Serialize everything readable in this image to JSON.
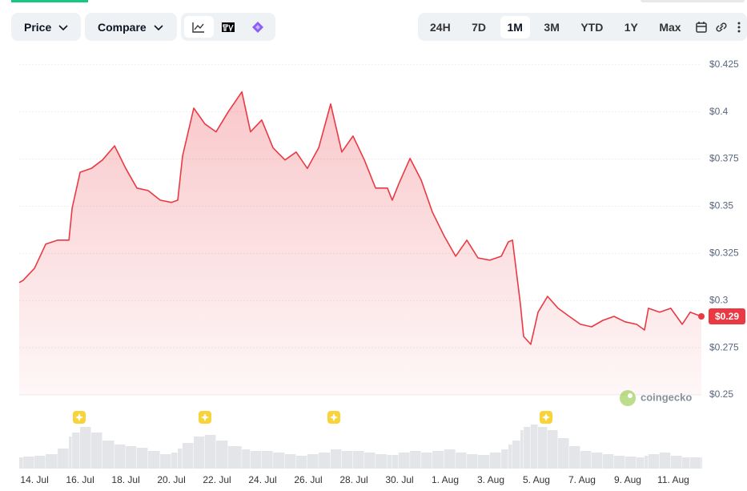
{
  "toolbar": {
    "price": "Price",
    "compare": "Compare",
    "ranges": [
      "24H",
      "7D",
      "1M",
      "3M",
      "YTD",
      "1Y",
      "Max"
    ],
    "active_range": 2
  },
  "watermark": "coingecko",
  "chart_data": {
    "type": "line",
    "current_label": "$0.29",
    "color": "#ea3943",
    "x": [
      -0.67,
      -0.49,
      0,
      0.49,
      1.02,
      1.51,
      1.65,
      2.0,
      2.49,
      2.98,
      3.51,
      4.0,
      4.49,
      4.98,
      5.51,
      6.0,
      6.28,
      6.49,
      6.98,
      7.47,
      7.96,
      8.49,
      9.09,
      9.47,
      9.96,
      10.46,
      10.98,
      11.47,
      11.96,
      12.46,
      12.98,
      13.47,
      13.96,
      14.46,
      14.95,
      15.47,
      15.68,
      15.96,
      16.46,
      16.95,
      17.44,
      17.96,
      18.46,
      18.95,
      19.44,
      19.96,
      20.46,
      20.77,
      20.95,
      21.3,
      21.44,
      21.75,
      22.07,
      22.49,
      22.95,
      23.44,
      23.93,
      24.42,
      24.91,
      25.4,
      25.89,
      26.39,
      26.74,
      26.91,
      27.4,
      27.89,
      28.39,
      28.74,
      29.23
    ],
    "series": [
      {
        "values": [
          0.3095,
          0.3108,
          0.3171,
          0.3299,
          0.332,
          0.332,
          0.349,
          0.368,
          0.37,
          0.3745,
          0.382,
          0.37,
          0.3596,
          0.3583,
          0.3532,
          0.352,
          0.3532,
          0.3766,
          0.402,
          0.3936,
          0.3894,
          0.4,
          0.4106,
          0.3894,
          0.3957,
          0.3809,
          0.3745,
          0.3787,
          0.37,
          0.381,
          0.4042,
          0.3787,
          0.3872,
          0.3745,
          0.3596,
          0.3596,
          0.3532,
          0.3617,
          0.3753,
          0.3638,
          0.3469,
          0.3341,
          0.3235,
          0.332,
          0.3226,
          0.3214,
          0.3235,
          0.3311,
          0.332,
          0.298,
          0.281,
          0.2768,
          0.2938,
          0.3022,
          0.2959,
          0.2916,
          0.2874,
          0.2861,
          0.2895,
          0.2916,
          0.2887,
          0.2874,
          0.2844,
          0.2959,
          0.2938,
          0.2959,
          0.2874,
          0.2938,
          0.2916
        ]
      }
    ],
    "volume": {
      "color": "#e3e5e8",
      "vlim": [
        0,
        60
      ],
      "values": [
        14,
        15,
        16,
        18,
        25,
        40,
        45,
        52,
        45,
        35,
        30,
        28,
        26,
        22,
        18,
        20,
        25,
        32,
        40,
        42,
        35,
        28,
        24,
        22,
        22,
        20,
        18,
        16,
        18,
        20,
        24,
        22,
        22,
        20,
        18,
        17,
        17,
        20,
        22,
        20,
        22,
        24,
        20,
        18,
        17,
        20,
        24,
        30,
        35,
        48,
        52,
        55,
        52,
        48,
        38,
        28,
        22,
        20,
        18,
        16,
        15,
        14,
        16,
        18,
        20,
        16,
        14,
        14,
        14
      ]
    },
    "xlim": [
      -0.67,
      29.23
    ],
    "xticks": [
      {
        "value": 0,
        "label": "14. Jul"
      },
      {
        "value": 2,
        "label": "16. Jul"
      },
      {
        "value": 4,
        "label": "18. Jul"
      },
      {
        "value": 6,
        "label": "20. Jul"
      },
      {
        "value": 8,
        "label": "22. Jul"
      },
      {
        "value": 10,
        "label": "24. Jul"
      },
      {
        "value": 12,
        "label": "26. Jul"
      },
      {
        "value": 14,
        "label": "28. Jul"
      },
      {
        "value": 16,
        "label": "30. Jul"
      },
      {
        "value": 18,
        "label": "1. Aug"
      },
      {
        "value": 20,
        "label": "3. Aug"
      },
      {
        "value": 22,
        "label": "5. Aug"
      },
      {
        "value": 24,
        "label": "7. Aug"
      },
      {
        "value": 26,
        "label": "9. Aug"
      },
      {
        "value": 28,
        "label": "11. Aug"
      }
    ],
    "ylim": [
      0.25,
      0.43
    ],
    "yticks": [
      {
        "value": 0.25,
        "label": "$0.25"
      },
      {
        "value": 0.275,
        "label": "$0.275"
      },
      {
        "value": 0.3,
        "label": "$0.3"
      },
      {
        "value": 0.325,
        "label": "$0.325"
      },
      {
        "value": 0.35,
        "label": "$0.35"
      },
      {
        "value": 0.375,
        "label": "$0.375"
      },
      {
        "value": 0.4,
        "label": "$0.4"
      },
      {
        "value": 0.425,
        "label": "$0.425"
      }
    ],
    "grid": true
  }
}
